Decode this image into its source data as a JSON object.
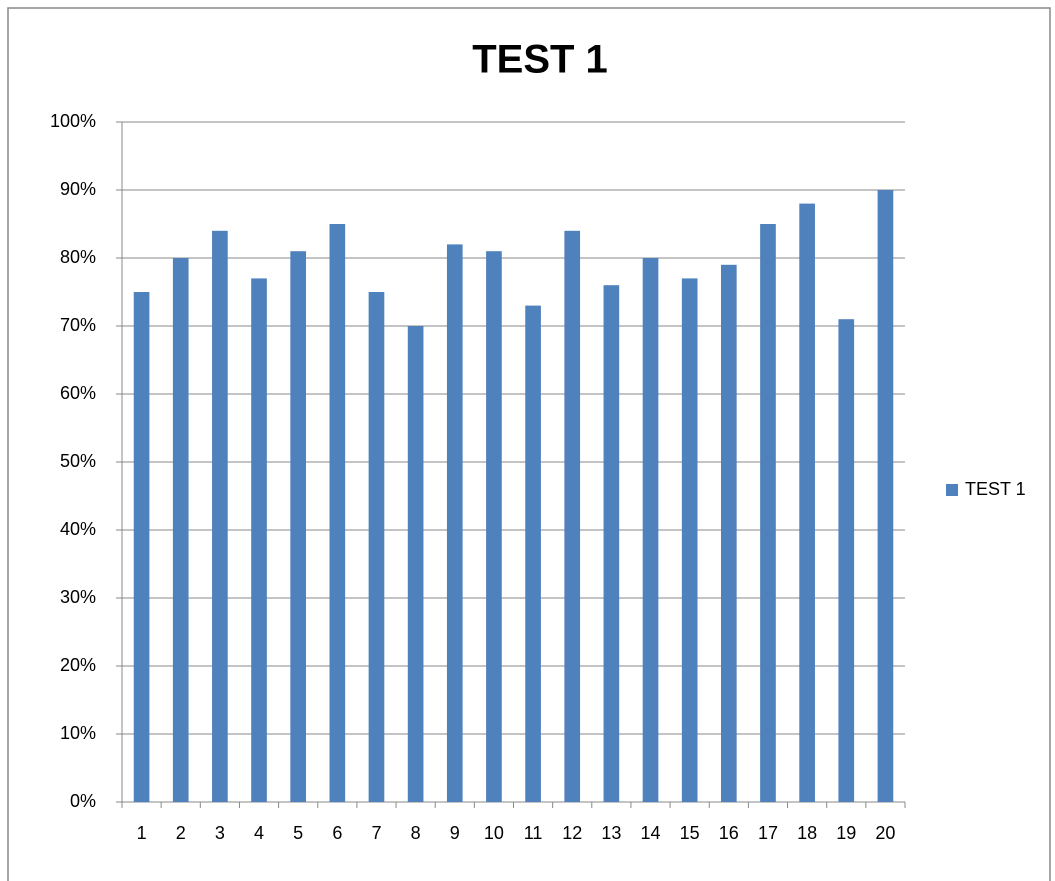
{
  "chart_data": {
    "type": "bar",
    "title": "TEST 1",
    "categories": [
      "1",
      "2",
      "3",
      "4",
      "5",
      "6",
      "7",
      "8",
      "9",
      "10",
      "11",
      "12",
      "13",
      "14",
      "15",
      "16",
      "17",
      "18",
      "19",
      "20"
    ],
    "series": [
      {
        "name": "TEST 1",
        "color": "#4f81bd",
        "values": [
          75,
          80,
          84,
          77,
          81,
          85,
          75,
          70,
          82,
          81,
          73,
          84,
          76,
          80,
          77,
          79,
          85,
          88,
          71,
          90
        ]
      }
    ],
    "ylim": [
      0,
      100
    ],
    "yticks": [
      {
        "value": 0,
        "label": "0%"
      },
      {
        "value": 10,
        "label": "10%"
      },
      {
        "value": 20,
        "label": "20%"
      },
      {
        "value": 30,
        "label": "30%"
      },
      {
        "value": 40,
        "label": "40%"
      },
      {
        "value": 50,
        "label": "50%"
      },
      {
        "value": 60,
        "label": "60%"
      },
      {
        "value": 70,
        "label": "70%"
      },
      {
        "value": 80,
        "label": "80%"
      },
      {
        "value": 90,
        "label": "90%"
      },
      {
        "value": 100,
        "label": "100%"
      }
    ],
    "grid": true,
    "legend": "right"
  }
}
